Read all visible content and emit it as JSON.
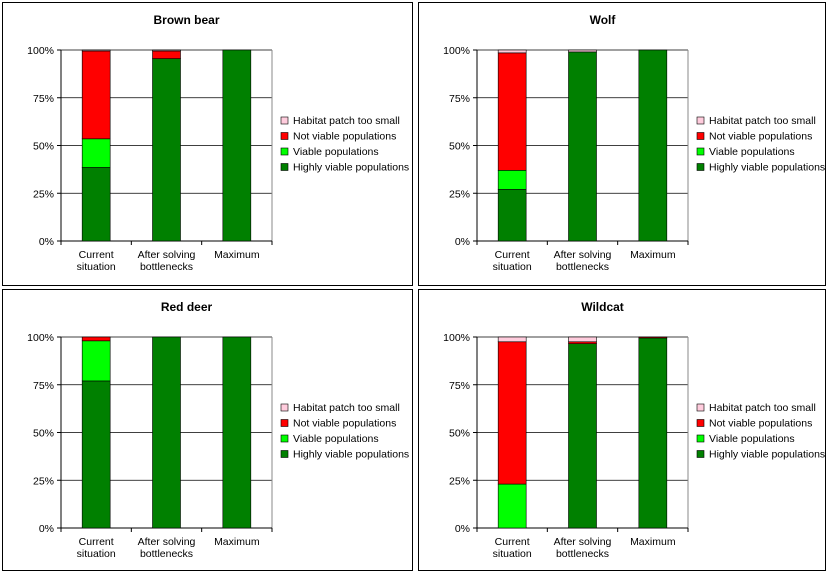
{
  "chart_data": [
    {
      "type": "bar",
      "stacked": "percent",
      "title": "Brown bear",
      "categories": [
        [
          "Current",
          "situation"
        ],
        [
          "After solving",
          "bottlenecks"
        ],
        [
          "Maximum"
        ]
      ],
      "ylim": [
        0,
        100
      ],
      "yticks": [
        "0%",
        "25%",
        "50%",
        "75%",
        "100%"
      ],
      "grid": true,
      "legend": "right",
      "series": [
        {
          "name": "Highly viable populations",
          "color": "#008000",
          "values": [
            38.5,
            95.5,
            100
          ]
        },
        {
          "name": "Viable populations",
          "color": "#00ff00",
          "values": [
            15,
            0,
            0
          ]
        },
        {
          "name": "Not viable populations",
          "color": "#ff0000",
          "values": [
            46,
            4,
            0
          ]
        },
        {
          "name": "Habitat patch too small",
          "color": "#ffccdd",
          "values": [
            0.5,
            0.5,
            0
          ]
        }
      ]
    },
    {
      "type": "bar",
      "stacked": "percent",
      "title": "Wolf",
      "categories": [
        [
          "Current",
          "situation"
        ],
        [
          "After solving",
          "bottlenecks"
        ],
        [
          "Maximum"
        ]
      ],
      "ylim": [
        0,
        100
      ],
      "yticks": [
        "0%",
        "25%",
        "50%",
        "75%",
        "100%"
      ],
      "grid": true,
      "legend": "right",
      "series": [
        {
          "name": "Highly viable populations",
          "color": "#008000",
          "values": [
            27,
            99,
            100
          ]
        },
        {
          "name": "Viable populations",
          "color": "#00ff00",
          "values": [
            10,
            0,
            0
          ]
        },
        {
          "name": "Not viable populations",
          "color": "#ff0000",
          "values": [
            61.5,
            0,
            0
          ]
        },
        {
          "name": "Habitat patch too small",
          "color": "#ffccdd",
          "values": [
            1.5,
            1,
            0
          ]
        }
      ]
    },
    {
      "type": "bar",
      "stacked": "percent",
      "title": "Red deer",
      "categories": [
        [
          "Current",
          "situation"
        ],
        [
          "After solving",
          "bottlenecks"
        ],
        [
          "Maximum"
        ]
      ],
      "ylim": [
        0,
        100
      ],
      "yticks": [
        "0%",
        "25%",
        "50%",
        "75%",
        "100%"
      ],
      "grid": true,
      "legend": "right",
      "series": [
        {
          "name": "Highly viable populations",
          "color": "#008000",
          "values": [
            77,
            100,
            100
          ]
        },
        {
          "name": "Viable populations",
          "color": "#00ff00",
          "values": [
            21,
            0,
            0
          ]
        },
        {
          "name": "Not viable populations",
          "color": "#ff0000",
          "values": [
            2,
            0,
            0
          ]
        },
        {
          "name": "Habitat patch too small",
          "color": "#ffccdd",
          "values": [
            0,
            0,
            0
          ]
        }
      ]
    },
    {
      "type": "bar",
      "stacked": "percent",
      "title": "Wildcat",
      "categories": [
        [
          "Current",
          "situation"
        ],
        [
          "After solving",
          "bottlenecks"
        ],
        [
          "Maximum"
        ]
      ],
      "ylim": [
        0,
        100
      ],
      "yticks": [
        "0%",
        "25%",
        "50%",
        "75%",
        "100%"
      ],
      "grid": true,
      "legend": "right",
      "series": [
        {
          "name": "Highly viable populations",
          "color": "#008000",
          "values": [
            0,
            96.5,
            99.5
          ]
        },
        {
          "name": "Viable populations",
          "color": "#00ff00",
          "values": [
            23,
            0,
            0
          ]
        },
        {
          "name": "Not viable populations",
          "color": "#ff0000",
          "values": [
            74.5,
            1,
            0.5
          ]
        },
        {
          "name": "Habitat patch too small",
          "color": "#ffccdd",
          "values": [
            2.5,
            2.5,
            0
          ]
        }
      ]
    }
  ]
}
